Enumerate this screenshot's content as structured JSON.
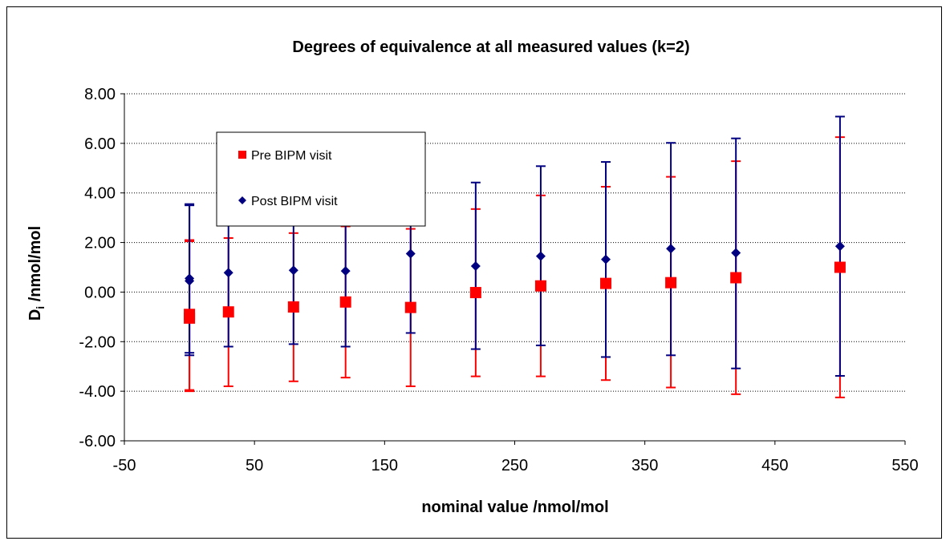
{
  "chart_data": {
    "type": "scatter",
    "title": "Degrees of equivalence at all measured values (k=2)",
    "xlabel": "nominal value /nmol/mol",
    "ylabel_main": "D",
    "ylabel_sub": "i",
    "ylabel_rest": " /nmol/mol",
    "xlim": [
      -50,
      550
    ],
    "ylim": [
      -6,
      8
    ],
    "x_ticks": [
      -50,
      50,
      150,
      250,
      350,
      450,
      550
    ],
    "x_tick_labels": [
      "-50",
      "50",
      "150",
      "250",
      "350",
      "450",
      "550"
    ],
    "y_ticks": [
      -6,
      -4,
      -2,
      0,
      2,
      4,
      6,
      8
    ],
    "y_tick_labels": [
      "-6.00",
      "-4.00",
      "-2.00",
      "0.00",
      "2.00",
      "4.00",
      "6.00",
      "8.00"
    ],
    "grid": "horizontal dotted",
    "legend_position": "upper-left",
    "series": [
      {
        "name": "Pre BIPM visit",
        "marker": "square",
        "color": "#ff0000",
        "points": [
          {
            "x": 0,
            "y": -0.9,
            "lo": -3.95,
            "hi": 2.05
          },
          {
            "x": 0,
            "y": -1.05,
            "lo": -4.0,
            "hi": 2.1
          },
          {
            "x": 30,
            "y": -0.8,
            "lo": -3.8,
            "hi": 2.18
          },
          {
            "x": 80,
            "y": -0.6,
            "lo": -3.6,
            "hi": 2.38
          },
          {
            "x": 120,
            "y": -0.4,
            "lo": -3.45,
            "hi": 2.65
          },
          {
            "x": 170,
            "y": -0.62,
            "lo": -3.8,
            "hi": 2.55
          },
          {
            "x": 220,
            "y": -0.02,
            "lo": -3.4,
            "hi": 3.35
          },
          {
            "x": 270,
            "y": 0.25,
            "lo": -3.4,
            "hi": 3.9
          },
          {
            "x": 320,
            "y": 0.35,
            "lo": -3.55,
            "hi": 4.25
          },
          {
            "x": 370,
            "y": 0.38,
            "lo": -3.85,
            "hi": 4.65
          },
          {
            "x": 420,
            "y": 0.58,
            "lo": -4.12,
            "hi": 5.28
          },
          {
            "x": 500,
            "y": 1.0,
            "lo": -4.25,
            "hi": 6.25
          }
        ]
      },
      {
        "name": "Post BIPM visit",
        "marker": "diamond",
        "color": "#000080",
        "points": [
          {
            "x": 0,
            "y": 0.55,
            "lo": -2.45,
            "hi": 3.55
          },
          {
            "x": 0,
            "y": 0.45,
            "lo": -2.55,
            "hi": 3.5
          },
          {
            "x": 30,
            "y": 0.78,
            "lo": -2.2,
            "hi": 3.75
          },
          {
            "x": 80,
            "y": 0.88,
            "lo": -2.1,
            "hi": 3.85
          },
          {
            "x": 120,
            "y": 0.85,
            "lo": -2.2,
            "hi": 3.9
          },
          {
            "x": 170,
            "y": 1.55,
            "lo": -1.65,
            "hi": 4.1
          },
          {
            "x": 220,
            "y": 1.05,
            "lo": -2.3,
            "hi": 4.42
          },
          {
            "x": 270,
            "y": 1.45,
            "lo": -2.15,
            "hi": 5.08
          },
          {
            "x": 320,
            "y": 1.32,
            "lo": -2.62,
            "hi": 5.25
          },
          {
            "x": 370,
            "y": 1.75,
            "lo": -2.55,
            "hi": 6.02
          },
          {
            "x": 420,
            "y": 1.58,
            "lo": -3.08,
            "hi": 6.2
          },
          {
            "x": 500,
            "y": 1.85,
            "lo": -3.38,
            "hi": 7.08
          }
        ]
      }
    ]
  }
}
